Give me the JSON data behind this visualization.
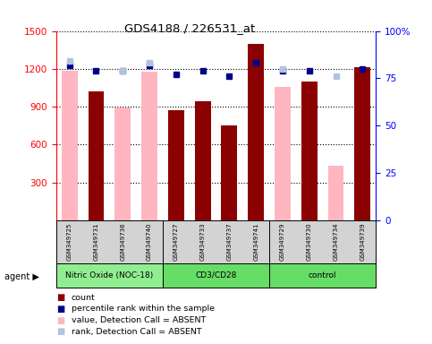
{
  "title": "GDS4188 / 226531_at",
  "samples": [
    "GSM349725",
    "GSM349731",
    "GSM349736",
    "GSM349740",
    "GSM349727",
    "GSM349733",
    "GSM349737",
    "GSM349741",
    "GSM349729",
    "GSM349730",
    "GSM349734",
    "GSM349739"
  ],
  "count_values": [
    null,
    1020,
    null,
    null,
    870,
    940,
    750,
    1400,
    null,
    1100,
    null,
    1210
  ],
  "absent_values": [
    1185,
    null,
    890,
    1175,
    null,
    null,
    null,
    null,
    1060,
    null,
    430,
    null
  ],
  "rank_present": [
    82,
    79,
    79,
    82,
    77,
    79,
    76,
    83,
    79,
    79,
    null,
    80
  ],
  "rank_absent": [
    84,
    null,
    79,
    83,
    null,
    null,
    null,
    null,
    80,
    null,
    76,
    null
  ],
  "ylim_left": [
    0,
    1500
  ],
  "ylim_right": [
    0,
    100
  ],
  "yticks_left": [
    300,
    600,
    900,
    1200,
    1500
  ],
  "yticks_right": [
    0,
    25,
    50,
    75,
    100
  ],
  "bar_color_present": "#8B0000",
  "bar_color_absent": "#FFB6C1",
  "rank_color_present": "#00008B",
  "rank_color_absent": "#B0C4DE",
  "group_labels": [
    "Nitric Oxide (NOC-18)",
    "CD3/CD28",
    "control"
  ],
  "group_colors": [
    "#90EE90",
    "#66DD66",
    "#66DD66"
  ],
  "group_starts": [
    0,
    4,
    8
  ],
  "group_ends": [
    4,
    8,
    12
  ]
}
